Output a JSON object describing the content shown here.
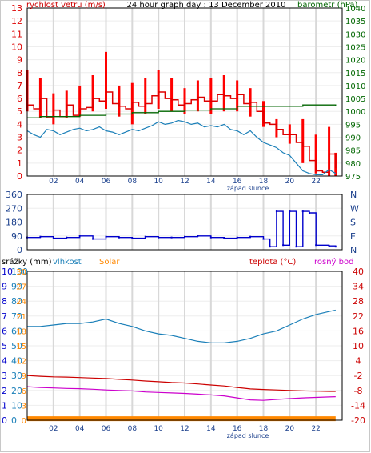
{
  "header": {
    "title": "24 hour graph day : 13 December 2010",
    "wind_label": "rychlost vetru (m/s)",
    "pressure_label": "barometr (hPa)"
  },
  "colors": {
    "wind": "#dd0000",
    "gust": "#ff0000",
    "wind_avg": "#1a7fb8",
    "pressure": "#006600",
    "direction": "#0000cc",
    "humidity": "#1a7fb8",
    "temperature": "#cc0000",
    "dewpoint": "#cc00cc",
    "solar": "#ff8800",
    "rain": "#0000cc",
    "grid": "#d8d8d8"
  },
  "chart_data": [
    {
      "type": "line",
      "name": "wind-pressure",
      "title": "24 hour graph day : 13 December 2010",
      "xlabel": "západ slunce",
      "ylabel": "rychlost vetru (m/s)",
      "y2label": "barometr (hPa)",
      "xlim": [
        0,
        24
      ],
      "ylim": [
        0,
        13
      ],
      "y2lim": [
        975,
        1040
      ],
      "x_ticks": [
        "02",
        "04",
        "06",
        "08",
        "10",
        "12",
        "14",
        "16",
        "18",
        "20",
        "22"
      ],
      "y_ticks": [
        0,
        1,
        2,
        3,
        4,
        5,
        6,
        7,
        8,
        9,
        10,
        11,
        12,
        13
      ],
      "y2_ticks": [
        975,
        980,
        985,
        990,
        995,
        1000,
        1005,
        1010,
        1015,
        1020,
        1025,
        1030,
        1035,
        1040
      ],
      "gust_range": {
        "x": [
          0,
          1,
          2,
          3,
          4,
          5,
          6,
          7,
          8,
          9,
          10,
          11,
          12,
          13,
          14,
          15,
          16,
          17,
          18,
          19,
          20,
          21,
          22,
          23,
          23.5
        ],
        "low": [
          5.0,
          4.5,
          4.0,
          4.5,
          4.6,
          5.0,
          5.2,
          4.6,
          4.0,
          4.8,
          5.2,
          5.0,
          4.8,
          5.0,
          4.8,
          5.0,
          5.0,
          4.6,
          3.8,
          3.0,
          2.5,
          1.0,
          0.2,
          0.0,
          0.0
        ],
        "high": [
          8.2,
          7.6,
          6.4,
          6.6,
          7.0,
          7.8,
          9.6,
          7.0,
          7.2,
          7.6,
          8.2,
          7.6,
          6.8,
          7.4,
          7.6,
          7.8,
          7.4,
          6.8,
          5.8,
          4.4,
          4.0,
          4.4,
          3.2,
          3.8,
          1.8
        ]
      },
      "series": [
        {
          "key": "wind",
          "x": [
            0,
            0.5,
            1,
            1.5,
            2,
            2.5,
            3,
            3.5,
            4,
            4.5,
            5,
            5.5,
            6,
            6.5,
            7,
            7.5,
            8,
            8.5,
            9,
            9.5,
            10,
            10.5,
            11,
            11.5,
            12,
            12.5,
            13,
            13.5,
            14,
            14.5,
            15,
            15.5,
            16,
            16.5,
            17,
            17.5,
            18,
            18.5,
            19,
            19.5,
            20,
            20.5,
            21,
            21.5,
            22,
            22.5,
            23,
            23.5
          ],
          "values": [
            5.5,
            5.2,
            6.0,
            4.5,
            5.1,
            4.6,
            5.5,
            4.7,
            5.2,
            5.3,
            6.0,
            5.8,
            6.5,
            5.6,
            5.4,
            5.2,
            5.7,
            5.4,
            5.6,
            6.2,
            6.5,
            6.0,
            5.9,
            5.5,
            5.6,
            5.9,
            6.1,
            5.8,
            5.8,
            6.3,
            6.2,
            6.0,
            6.3,
            5.6,
            5.7,
            5.0,
            4.1,
            4.0,
            3.6,
            3.2,
            3.2,
            2.6,
            2.3,
            1.2,
            0.4,
            0.3,
            1.7,
            0.6
          ]
        },
        {
          "key": "wind_avg",
          "x": [
            0,
            0.5,
            1,
            1.5,
            2,
            2.5,
            3,
            3.5,
            4,
            4.5,
            5,
            5.5,
            6,
            6.5,
            7,
            7.5,
            8,
            8.5,
            9,
            9.5,
            10,
            10.5,
            11,
            11.5,
            12,
            12.5,
            13,
            13.5,
            14,
            14.5,
            15,
            15.5,
            16,
            16.5,
            17,
            17.5,
            18,
            18.5,
            19,
            19.5,
            20,
            20.5,
            21,
            21.5,
            22,
            22.5,
            23,
            23.5
          ],
          "values": [
            3.5,
            3.2,
            3.0,
            3.6,
            3.5,
            3.2,
            3.4,
            3.6,
            3.7,
            3.5,
            3.6,
            3.8,
            3.5,
            3.4,
            3.2,
            3.4,
            3.6,
            3.5,
            3.7,
            3.9,
            4.2,
            4.0,
            4.1,
            4.3,
            4.2,
            4.0,
            4.1,
            3.8,
            3.9,
            3.8,
            4.0,
            3.6,
            3.5,
            3.2,
            3.5,
            3.0,
            2.6,
            2.4,
            2.2,
            1.8,
            1.6,
            1.0,
            0.4,
            0.2,
            0.1,
            0.1,
            0.5,
            0.2
          ]
        },
        {
          "key": "pressure",
          "axis": "y2",
          "x": [
            0,
            1,
            2,
            3,
            4,
            5,
            6,
            7,
            8,
            9,
            10,
            11,
            12,
            13,
            14,
            15,
            16,
            17,
            18,
            19,
            20,
            21,
            22,
            23,
            23.5
          ],
          "values": [
            997.5,
            998,
            998,
            998,
            998.5,
            998.5,
            999,
            999,
            999.5,
            999.5,
            1000,
            1000,
            1000.5,
            1000.5,
            1001,
            1001,
            1002,
            1002,
            1002,
            1002,
            1002,
            1002.5,
            1002.5,
            1002.5,
            1002
          ]
        }
      ]
    },
    {
      "type": "scatter",
      "name": "wind-direction",
      "ylim": [
        0,
        360
      ],
      "xlim": [
        0,
        24
      ],
      "y_ticks": [
        0,
        90,
        180,
        270,
        360
      ],
      "y2_ticks": [
        "N",
        "E",
        "S",
        "W",
        "N"
      ],
      "series": [
        {
          "key": "direction",
          "x": [
            0,
            1,
            2,
            3,
            4,
            5,
            6,
            7,
            8,
            9,
            10,
            11,
            12,
            13,
            14,
            15,
            16,
            17,
            18,
            18.5,
            19,
            19.5,
            20,
            20.5,
            21,
            21.5,
            22,
            23,
            23.5
          ],
          "values": [
            80,
            85,
            75,
            80,
            90,
            70,
            85,
            80,
            75,
            85,
            80,
            80,
            85,
            90,
            80,
            75,
            80,
            85,
            70,
            20,
            250,
            30,
            250,
            20,
            250,
            240,
            30,
            25,
            20
          ]
        }
      ]
    },
    {
      "type": "line",
      "name": "rain-humidity-temp",
      "xlabel": "západ slunce",
      "labels": [
        "srážky (mm)",
        "vlhkost",
        "Solar",
        "teplota (°C)",
        "rosný bod"
      ],
      "rain_ticks": [
        0,
        1,
        2,
        3,
        4,
        5,
        6,
        7,
        8,
        9,
        10
      ],
      "humidity_ticks": [
        0,
        10,
        20,
        30,
        40,
        50,
        60,
        70,
        80,
        90,
        100
      ],
      "solar_ticks": [
        0,
        3,
        6,
        9,
        12,
        15,
        18,
        21,
        24,
        27,
        30
      ],
      "temp_ticks": [
        -20,
        -14,
        -8,
        -2,
        4,
        10,
        16,
        22,
        28,
        34,
        40
      ],
      "temp_lim": [
        -20,
        40
      ],
      "humidity_lim": [
        0,
        100
      ],
      "xlim": [
        0,
        24
      ],
      "series": [
        {
          "key": "humidity",
          "x": [
            0,
            1,
            2,
            3,
            4,
            5,
            6,
            7,
            8,
            9,
            10,
            11,
            12,
            13,
            14,
            15,
            16,
            17,
            18,
            19,
            20,
            21,
            22,
            23,
            23.5
          ],
          "values": [
            63,
            63,
            64,
            65,
            65,
            66,
            68,
            65,
            63,
            60,
            58,
            57,
            55,
            53,
            52,
            52,
            53,
            55,
            58,
            60,
            64,
            68,
            71,
            73,
            74
          ]
        },
        {
          "key": "temperature",
          "x": [
            0,
            1,
            2,
            3,
            4,
            5,
            6,
            7,
            8,
            9,
            10,
            11,
            12,
            13,
            14,
            15,
            16,
            17,
            18,
            19,
            20,
            21,
            22,
            23,
            23.5
          ],
          "values": [
            -2.0,
            -2.3,
            -2.5,
            -2.6,
            -2.8,
            -3.0,
            -3.2,
            -3.5,
            -3.8,
            -4.2,
            -4.5,
            -4.8,
            -5.0,
            -5.4,
            -5.8,
            -6.2,
            -6.8,
            -7.4,
            -7.6,
            -7.8,
            -8.0,
            -8.2,
            -8.3,
            -8.4,
            -8.4
          ]
        },
        {
          "key": "dewpoint",
          "x": [
            0,
            1,
            2,
            3,
            4,
            5,
            6,
            7,
            8,
            9,
            10,
            11,
            12,
            13,
            14,
            15,
            16,
            17,
            18,
            19,
            20,
            21,
            22,
            23,
            23.5
          ],
          "values": [
            -6.5,
            -6.8,
            -7.0,
            -7.2,
            -7.3,
            -7.5,
            -7.8,
            -8.0,
            -8.2,
            -8.6,
            -8.8,
            -9.0,
            -9.2,
            -9.5,
            -9.8,
            -10.2,
            -11.0,
            -11.8,
            -12.0,
            -11.6,
            -11.3,
            -11.0,
            -10.8,
            -10.6,
            -10.5
          ]
        },
        {
          "key": "solar",
          "x": [
            0,
            23.5
          ],
          "values": [
            0.3,
            0.3
          ]
        }
      ]
    }
  ]
}
